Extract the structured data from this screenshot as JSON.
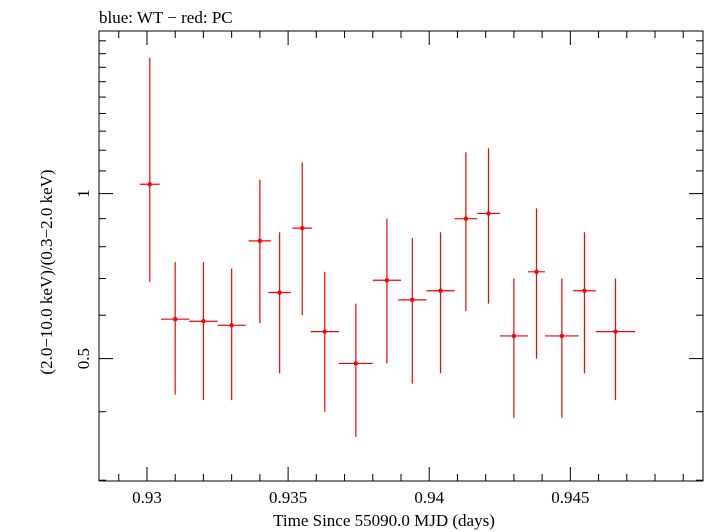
{
  "chart_data": {
    "type": "scatter",
    "title": "blue: WT − red: PC",
    "xlabel": "Time Since 55090.0 MJD (days)",
    "ylabel": "(2.0−10.0 keV)/(0.3−2.0 keV)",
    "xlim": [
      0.9283,
      0.9497
    ],
    "ylim": [
      0.299,
      1.98
    ],
    "yscale": "log",
    "x_ticks": [
      "0.93",
      "0.935",
      "0.94",
      "0.945"
    ],
    "y_ticks": [
      "0.5",
      "1"
    ],
    "series": [
      {
        "color": "#ff0000",
        "points": [
          {
            "x": 0.9301,
            "xerr": 0.00035,
            "y": 1.04,
            "ylo": 0.69,
            "yhi": 1.77
          },
          {
            "x": 0.931,
            "xerr": 0.0005,
            "y": 0.59,
            "ylo": 0.43,
            "yhi": 0.75
          },
          {
            "x": 0.932,
            "xerr": 0.0005,
            "y": 0.585,
            "ylo": 0.42,
            "yhi": 0.75
          },
          {
            "x": 0.933,
            "xerr": 0.0005,
            "y": 0.575,
            "ylo": 0.42,
            "yhi": 0.73
          },
          {
            "x": 0.934,
            "xerr": 0.0004,
            "y": 0.82,
            "ylo": 0.58,
            "yhi": 1.06
          },
          {
            "x": 0.9347,
            "xerr": 0.0004,
            "y": 0.66,
            "ylo": 0.47,
            "yhi": 0.85
          },
          {
            "x": 0.9355,
            "xerr": 0.00035,
            "y": 0.865,
            "ylo": 0.6,
            "yhi": 1.14
          },
          {
            "x": 0.9363,
            "xerr": 0.0005,
            "y": 0.56,
            "ylo": 0.4,
            "yhi": 0.72
          },
          {
            "x": 0.9374,
            "xerr": 0.0006,
            "y": 0.49,
            "ylo": 0.36,
            "yhi": 0.63
          },
          {
            "x": 0.9385,
            "xerr": 0.0005,
            "y": 0.695,
            "ylo": 0.49,
            "yhi": 0.9
          },
          {
            "x": 0.9394,
            "xerr": 0.0005,
            "y": 0.64,
            "ylo": 0.45,
            "yhi": 0.83
          },
          {
            "x": 0.9404,
            "xerr": 0.0005,
            "y": 0.665,
            "ylo": 0.47,
            "yhi": 0.85
          },
          {
            "x": 0.9413,
            "xerr": 0.0004,
            "y": 0.9,
            "ylo": 0.61,
            "yhi": 1.19
          },
          {
            "x": 0.9421,
            "xerr": 0.0004,
            "y": 0.92,
            "ylo": 0.63,
            "yhi": 1.21
          },
          {
            "x": 0.943,
            "xerr": 0.0005,
            "y": 0.55,
            "ylo": 0.39,
            "yhi": 0.7
          },
          {
            "x": 0.9438,
            "xerr": 0.0003,
            "y": 0.72,
            "ylo": 0.5,
            "yhi": 0.94
          },
          {
            "x": 0.9447,
            "xerr": 0.0006,
            "y": 0.55,
            "ylo": 0.39,
            "yhi": 0.7
          },
          {
            "x": 0.9455,
            "xerr": 0.0004,
            "y": 0.665,
            "ylo": 0.47,
            "yhi": 0.85
          },
          {
            "x": 0.9466,
            "xerr": 0.0007,
            "y": 0.56,
            "ylo": 0.42,
            "yhi": 0.7
          }
        ]
      }
    ]
  }
}
